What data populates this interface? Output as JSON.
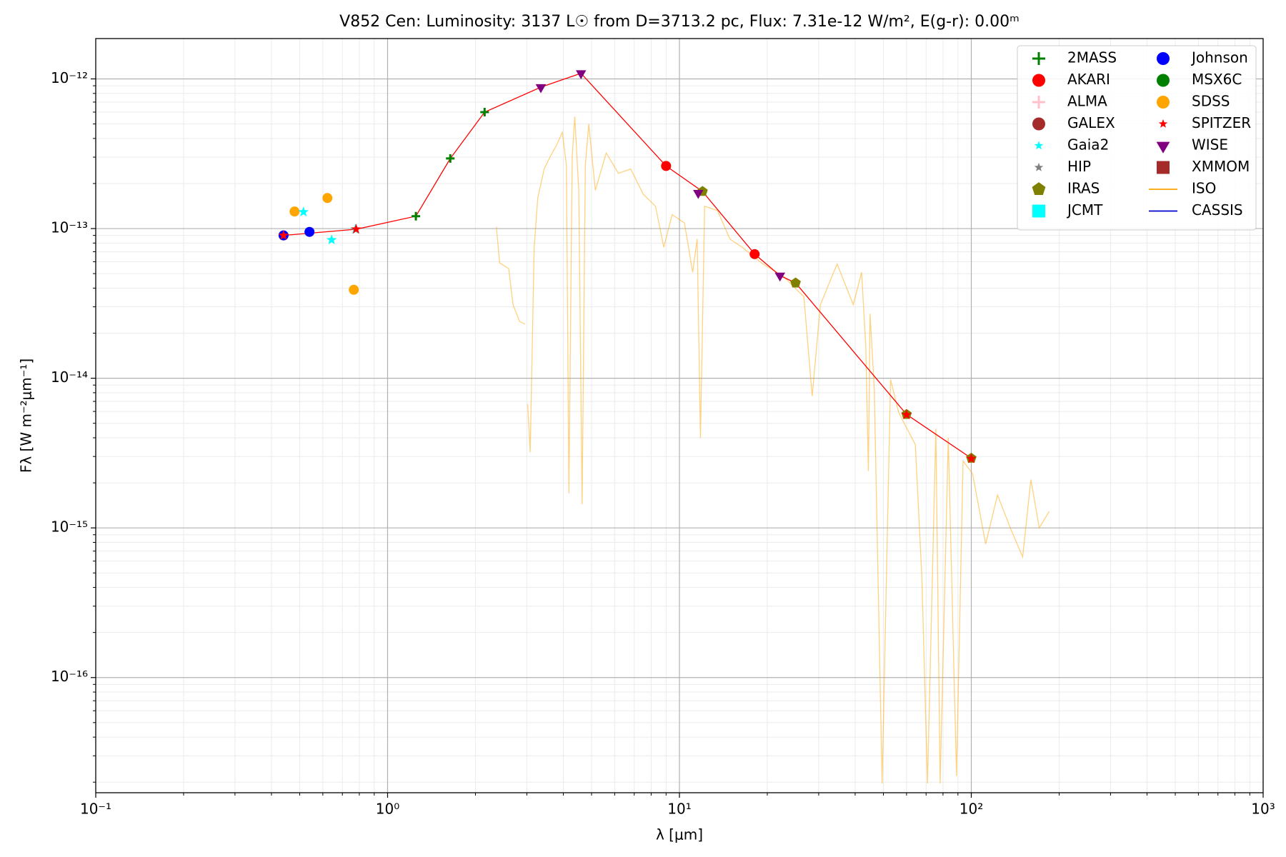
{
  "chart_data": {
    "type": "scatter",
    "title": "V852 Cen:  Luminosity: 3137 L☉ from D=3713.2 pc, Flux: 7.31e-12 W/m², E(g-r): 0.00ᵐ",
    "x_label": "λ [μm]",
    "y_label": "Fλ [W m⁻²μm⁻¹]",
    "log_x": true,
    "log_y": true,
    "grid": true,
    "minor_grid": true,
    "legend": "upper right",
    "xlim": [
      0.1,
      1000
    ],
    "ylim": [
      1.7e-17,
      1.86e-12
    ],
    "xticks": [
      {
        "value": 0.1,
        "label": "10⁻¹"
      },
      {
        "value": 1,
        "label": "10⁰"
      },
      {
        "value": 10,
        "label": "10¹"
      },
      {
        "value": 100,
        "label": "10²"
      },
      {
        "value": 1000,
        "label": "10³"
      }
    ],
    "yticks": [
      {
        "value": 1e-16,
        "label": "10⁻¹⁶"
      },
      {
        "value": 1e-15,
        "label": "10⁻¹⁵"
      },
      {
        "value": 1e-14,
        "label": "10⁻¹⁴"
      },
      {
        "value": 1e-13,
        "label": "10⁻¹³"
      },
      {
        "value": 1e-12,
        "label": "10⁻¹²"
      }
    ],
    "series": [
      {
        "name": "2MASS",
        "color": "#008000",
        "marker": "plus",
        "x": [
          1.25,
          1.64,
          2.15
        ],
        "values": [
          1.21e-13,
          2.94e-13,
          6e-13
        ]
      },
      {
        "name": "AKARI",
        "color": "#ff0000",
        "marker": "circle",
        "x": [
          9.0,
          18.1
        ],
        "values": [
          2.62e-13,
          6.75e-14
        ]
      },
      {
        "name": "ALMA",
        "color": "#ffc0cb",
        "marker": "plus",
        "x": [],
        "values": []
      },
      {
        "name": "GALEX",
        "color": "#a52a2a",
        "marker": "circle",
        "x": [],
        "values": []
      },
      {
        "name": "Gaia2",
        "color": "#00ffff",
        "marker": "star",
        "x": [
          0.515,
          0.643,
          0.776
        ],
        "values": [
          1.29e-13,
          8.4e-14,
          9.9e-14
        ]
      },
      {
        "name": "HIP",
        "color": "#808080",
        "marker": "star",
        "x": [],
        "values": []
      },
      {
        "name": "IRAS",
        "color": "#808000",
        "marker": "pentagon",
        "x": [
          12,
          25,
          60,
          100
        ],
        "values": [
          1.77e-13,
          4.33e-14,
          5.73e-15,
          2.92e-15
        ]
      },
      {
        "name": "JCMT",
        "color": "#00ffff",
        "marker": "square",
        "x": [],
        "values": []
      },
      {
        "name": "Johnson",
        "color": "#0000ff",
        "marker": "circle",
        "x": [
          0.44,
          0.54
        ],
        "values": [
          9e-14,
          9.5e-14
        ]
      },
      {
        "name": "MSX6C",
        "color": "#008000",
        "marker": "circle",
        "x": [],
        "values": []
      },
      {
        "name": "SDSS",
        "color": "#ffa500",
        "marker": "circle",
        "x": [
          0.48,
          0.622,
          0.766
        ],
        "values": [
          1.3e-13,
          1.6e-13,
          3.9e-14
        ]
      },
      {
        "name": "SPITZER",
        "color": "#ff0000",
        "marker": "star",
        "x": [
          0.44,
          0.78,
          60,
          100
        ],
        "values": [
          9e-14,
          9.9e-14,
          5.7e-15,
          2.9e-15
        ]
      },
      {
        "name": "WISE",
        "color": "#800080",
        "marker": "triangle",
        "x": [
          3.35,
          4.6,
          11.6,
          22.1
        ],
        "values": [
          8.8e-13,
          1.09e-12,
          1.73e-13,
          4.85e-14
        ]
      },
      {
        "name": "XMMOM",
        "color": "#a52a2a",
        "marker": "square",
        "x": [],
        "values": []
      },
      {
        "name": "ISO",
        "color": "#ffa500",
        "marker": "line",
        "x": [
          2.36,
          2.42,
          2.6,
          2.69,
          2.83,
          2.96,
          null,
          3.02,
          3.08,
          3.18,
          3.27,
          3.44,
          3.6,
          3.79,
          3.97,
          4.1,
          4.18,
          4.29,
          4.38,
          4.52,
          4.64,
          4.76,
          4.89,
          5.15,
          5.61,
          6.18,
          6.81,
          7.51,
          8.28,
          8.84,
          9.44,
          10.4,
          11.1,
          11.5,
          11.8,
          12.2,
          13.5,
          14.9,
          16.4,
          19.3,
          22.7,
          26.7,
          28.5,
          30.4,
          34.7,
          39.4,
          42.1,
          43.5,
          44.4,
          45.0,
          46.5,
          49.5,
          52.9,
          56.4,
          60.2,
          64.3,
          67.7,
          70.8,
          75.6,
          78.2,
          83.4,
          89.0,
          93.7,
          101,
          112,
          123,
          136,
          150,
          160,
          171,
          185
        ],
        "values": [
          1.03e-13,
          5.9e-14,
          5.4e-14,
          3.1e-14,
          2.4e-14,
          2.3e-14,
          null,
          6.7e-15,
          3.2e-15,
          7.5e-14,
          1.6e-13,
          2.5e-13,
          3e-13,
          3.6e-13,
          4.4e-13,
          2.65e-13,
          1.7e-15,
          3e-13,
          5.6e-13,
          1.8e-13,
          1.44e-15,
          2.65e-13,
          5e-13,
          1.8e-13,
          3.2e-13,
          2.34e-13,
          2.5e-13,
          1.7e-13,
          1.41e-13,
          7.5e-14,
          1.24e-13,
          1.09e-13,
          5.1e-14,
          8.5e-14,
          4e-15,
          1.41e-13,
          1.32e-13,
          8.5e-14,
          7.5e-14,
          5.8e-14,
          4.8e-14,
          3.5e-14,
          7.6e-15,
          3.1e-14,
          5.8e-14,
          3.1e-14,
          5.1e-14,
          1.63e-14,
          2.4e-15,
          2.7e-14,
          8.6e-15,
          1.96e-17,
          9.8e-15,
          5.9e-15,
          4.6e-15,
          3.6e-15,
          4.7e-16,
          1.96e-17,
          4.6e-15,
          1.96e-17,
          4e-15,
          2.2e-17,
          2.8e-15,
          2.3e-15,
          7.8e-16,
          1.66e-15,
          1e-15,
          6.4e-16,
          2.1e-15,
          1e-15,
          1.29e-15
        ]
      },
      {
        "name": "CASSIS",
        "color": "#0000cd",
        "marker": "line",
        "x": [],
        "values": []
      },
      {
        "color": "#ff0000",
        "marker": "line",
        "x": [
          0.44,
          0.78,
          1.25,
          1.64,
          2.15,
          3.35,
          4.6,
          9.0,
          12,
          18.1,
          22.1,
          25,
          60,
          100
        ],
        "values": [
          9e-14,
          9.9e-14,
          1.21e-13,
          2.94e-13,
          6e-13,
          8.8e-13,
          1.09e-12,
          2.62e-13,
          1.77e-13,
          6.75e-14,
          4.85e-14,
          4.33e-14,
          5.73e-15,
          2.92e-15
        ]
      }
    ]
  }
}
